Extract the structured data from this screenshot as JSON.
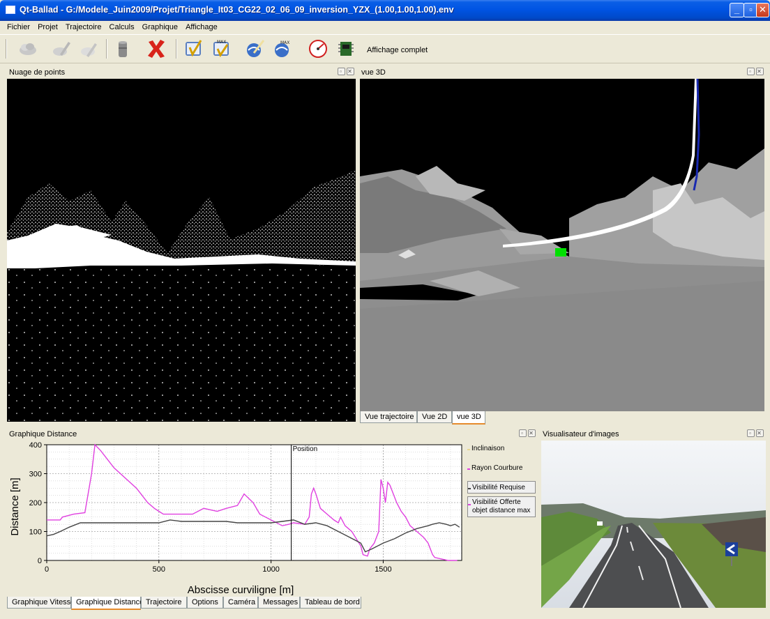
{
  "window": {
    "title": "Qt-Ballad - G:/Modele_Juin2009/Projet/Triangle_It03_CG22_02_06_09_inversion_YZX_(1.00,1.00,1.00).env"
  },
  "menu": [
    "Fichier",
    "Projet",
    "Trajectoire",
    "Calculs",
    "Graphique",
    "Affichage"
  ],
  "toolbar": {
    "icons": [
      "cloud-icon",
      "pen-ghost-icon",
      "pen-ghost-2-icon",
      "barrel-icon",
      "delete-icon",
      "visibility-icon",
      "visibility-max-icon",
      "globe-pen-icon",
      "globe-max-icon",
      "speedometer-icon",
      "chip-icon"
    ],
    "affichage_label": "Affichage complet"
  },
  "panels": {
    "point_cloud": {
      "title": "Nuage de points"
    },
    "view3d": {
      "title": "vue 3D"
    },
    "view_tabs": [
      {
        "label": "Vue trajectoire"
      },
      {
        "label": "Vue 2D"
      },
      {
        "label": "vue 3D",
        "active": true
      }
    ],
    "distance": {
      "title": "Graphique Distance"
    },
    "images": {
      "title": "Visualisateur d'images"
    }
  },
  "bottom_tabs": [
    {
      "label": "Graphique Vitesse"
    },
    {
      "label": "Graphique Distance",
      "active": true
    },
    {
      "label": "Trajectoire"
    },
    {
      "label": "Options"
    },
    {
      "label": "Caméra"
    },
    {
      "label": "Messages"
    },
    {
      "label": "Tableau de bord"
    }
  ],
  "chart_data": {
    "type": "line",
    "xlabel": "Abscisse curviligne [m]",
    "ylabel": "Distance [m]",
    "xlim": [
      0,
      1850
    ],
    "ylim": [
      0,
      400
    ],
    "xticks": [
      0,
      500,
      1000,
      1500
    ],
    "yticks": [
      0,
      100,
      200,
      300,
      400
    ],
    "grid": true,
    "legend_position": "right",
    "marker": {
      "x": 1090,
      "label": "Position"
    },
    "series": [
      {
        "name": "Inclinaison",
        "color": "#e8d890",
        "x": [],
        "y": []
      },
      {
        "name": "Rayon Courbure",
        "color": "#e040e0",
        "x": [
          0,
          60,
          70,
          120,
          170,
          200,
          215,
          240,
          300,
          400,
          420,
          450,
          480,
          500,
          520,
          550,
          600,
          650,
          700,
          760,
          800,
          850,
          880,
          920,
          950,
          1000,
          1050,
          1080,
          1100,
          1150,
          1170,
          1180,
          1190,
          1200,
          1220,
          1250,
          1280,
          1300,
          1310,
          1330,
          1360,
          1400,
          1410,
          1430,
          1440,
          1460,
          1480,
          1490,
          1500,
          1510,
          1520,
          1530,
          1540,
          1560,
          1580,
          1600,
          1620,
          1650,
          1680,
          1700,
          1720,
          1730,
          1760,
          1790,
          1830
        ],
        "y": [
          140,
          140,
          150,
          160,
          165,
          300,
          400,
          380,
          320,
          250,
          230,
          200,
          180,
          170,
          160,
          160,
          160,
          160,
          180,
          170,
          180,
          190,
          230,
          200,
          160,
          140,
          120,
          125,
          130,
          125,
          150,
          230,
          250,
          230,
          180,
          160,
          140,
          130,
          150,
          120,
          100,
          50,
          20,
          15,
          40,
          60,
          100,
          280,
          250,
          200,
          270,
          260,
          240,
          200,
          170,
          150,
          120,
          100,
          80,
          60,
          20,
          10,
          5,
          0,
          0
        ]
      },
      {
        "name": "Visibilité Requise",
        "color": "#444444",
        "x": [
          0,
          30,
          60,
          100,
          150,
          200,
          250,
          300,
          400,
          500,
          550,
          600,
          700,
          800,
          850,
          900,
          950,
          1000,
          1050,
          1100,
          1150,
          1200,
          1250,
          1300,
          1350,
          1400,
          1420,
          1450,
          1500,
          1550,
          1600,
          1650,
          1700,
          1720,
          1750,
          1780,
          1800,
          1820,
          1840
        ],
        "y": [
          85,
          90,
          100,
          115,
          130,
          130,
          130,
          130,
          130,
          130,
          140,
          135,
          135,
          135,
          130,
          130,
          130,
          130,
          135,
          140,
          125,
          130,
          120,
          100,
          80,
          60,
          30,
          40,
          60,
          75,
          95,
          110,
          120,
          125,
          130,
          125,
          120,
          125,
          115
        ]
      },
      {
        "name": "Visibilité Offerte objet distance max",
        "color": "#e040e0",
        "x": [],
        "y": []
      }
    ]
  }
}
